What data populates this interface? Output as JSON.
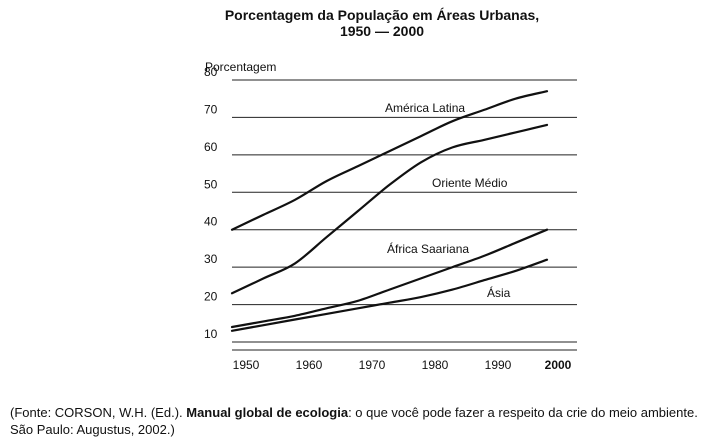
{
  "chart_data": {
    "type": "line",
    "title": "Porcentagem da População em Áreas Urbanas,",
    "subtitle": "1950 — 2000",
    "ylabel": "Porcentagem",
    "xlabel": "",
    "ylim": [
      10,
      80
    ],
    "xlim": [
      1950,
      2000
    ],
    "yticks": [
      10,
      20,
      30,
      40,
      50,
      60,
      70,
      80
    ],
    "xticks": [
      1950,
      1960,
      1970,
      1980,
      1990,
      2000
    ],
    "grid": "horizontal",
    "series": [
      {
        "name": "América Latina",
        "x": [
          1950,
          1955,
          1960,
          1965,
          1970,
          1975,
          1980,
          1985,
          1990,
          1995,
          2000
        ],
        "values": [
          40,
          44,
          48,
          53,
          57,
          61,
          65,
          69,
          72,
          75,
          77
        ]
      },
      {
        "name": "Oriente Médio",
        "x": [
          1950,
          1955,
          1960,
          1965,
          1970,
          1975,
          1980,
          1985,
          1990,
          1995,
          2000
        ],
        "values": [
          23,
          27,
          31,
          38,
          45,
          52,
          58,
          62,
          64,
          66,
          68
        ]
      },
      {
        "name": "África Saariana",
        "x": [
          1950,
          1955,
          1960,
          1965,
          1970,
          1975,
          1980,
          1985,
          1990,
          1995,
          2000
        ],
        "values": [
          14,
          15.5,
          17,
          19,
          21,
          24,
          27,
          30,
          33,
          36.5,
          40
        ]
      },
      {
        "name": "Ásia",
        "x": [
          1950,
          1955,
          1960,
          1965,
          1970,
          1975,
          1980,
          1985,
          1990,
          1995,
          2000
        ],
        "values": [
          13,
          14.5,
          16,
          17.5,
          19,
          20.5,
          22,
          24,
          26.5,
          29,
          32
        ]
      }
    ]
  },
  "caption": {
    "prefix": "(Fonte: CORSON, W.H. (Ed.). ",
    "book_title": "Manual global de ecologia",
    "suffix": ": o que você pode fazer a respeito da crie do meio ambiente. São Paulo: Augustus, 2002.)"
  }
}
